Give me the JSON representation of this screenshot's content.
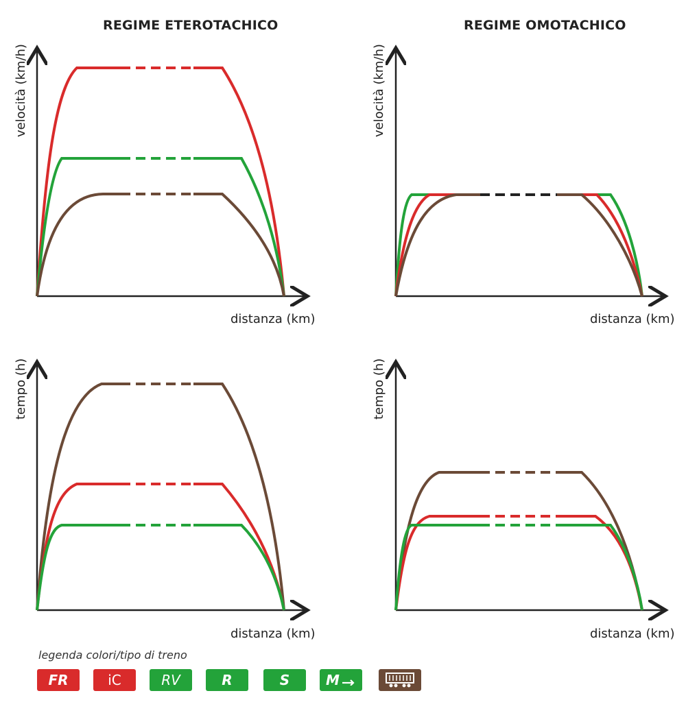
{
  "titles": {
    "left": "REGIME ETEROTACHICO",
    "right": "REGIME OMOTACHICO"
  },
  "axes": {
    "velocity_label": "velocità (km/h)",
    "time_label": "tempo (h)",
    "distance_label": "distanza (km)"
  },
  "colors": {
    "red": "#d92b2b",
    "green": "#23a33a",
    "brown": "#6b4a37",
    "black": "#222222"
  },
  "panels": [
    {
      "id": "top-left",
      "y_axis": "velocità (km/h)",
      "x_axis": "distanza (km)"
    },
    {
      "id": "top-right",
      "y_axis": "velocità (km/h)",
      "x_axis": "distanza (km)"
    },
    {
      "id": "bottom-left",
      "y_axis": "tempo (h)",
      "x_axis": "distanza (km)"
    },
    {
      "id": "bottom-right",
      "y_axis": "tempo (h)",
      "x_axis": "distanza (km)"
    }
  ],
  "legend": {
    "title": "legenda colori/tipo di treno",
    "items": [
      {
        "label": "FR",
        "color": "#d92b2b"
      },
      {
        "label": "iC",
        "color": "#d92b2b"
      },
      {
        "label": "RV",
        "color": "#23a33a"
      },
      {
        "label": "R",
        "color": "#23a33a"
      },
      {
        "label": "S",
        "color": "#23a33a"
      },
      {
        "label": "M",
        "color": "#23a33a",
        "icon": "metro-icon"
      },
      {
        "label": "",
        "color": "#6b4a37",
        "icon": "freight-wagon-icon"
      }
    ]
  }
}
